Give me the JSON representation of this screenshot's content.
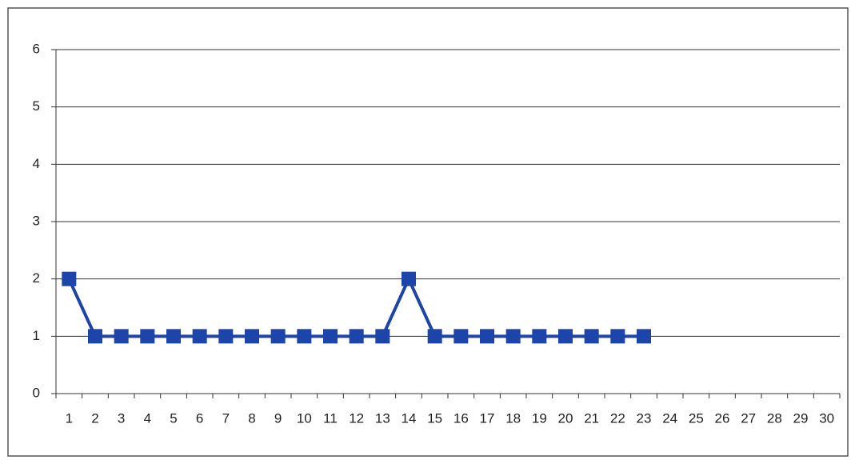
{
  "chart_data": {
    "type": "line",
    "categories": [
      "1",
      "2",
      "3",
      "4",
      "5",
      "6",
      "7",
      "8",
      "9",
      "10",
      "11",
      "12",
      "13",
      "14",
      "15",
      "16",
      "17",
      "18",
      "19",
      "20",
      "21",
      "22",
      "23",
      "24",
      "25",
      "26",
      "27",
      "28",
      "29",
      "30"
    ],
    "values": [
      2,
      1,
      1,
      1,
      1,
      1,
      1,
      1,
      1,
      1,
      1,
      1,
      1,
      2,
      1,
      1,
      1,
      1,
      1,
      1,
      1,
      1,
      1,
      null,
      null,
      null,
      null,
      null,
      null,
      null
    ],
    "color": "#1d44a8",
    "ylim": [
      0,
      6
    ],
    "yticks": [
      0,
      1,
      2,
      3,
      4,
      5,
      6
    ],
    "grid": true
  }
}
